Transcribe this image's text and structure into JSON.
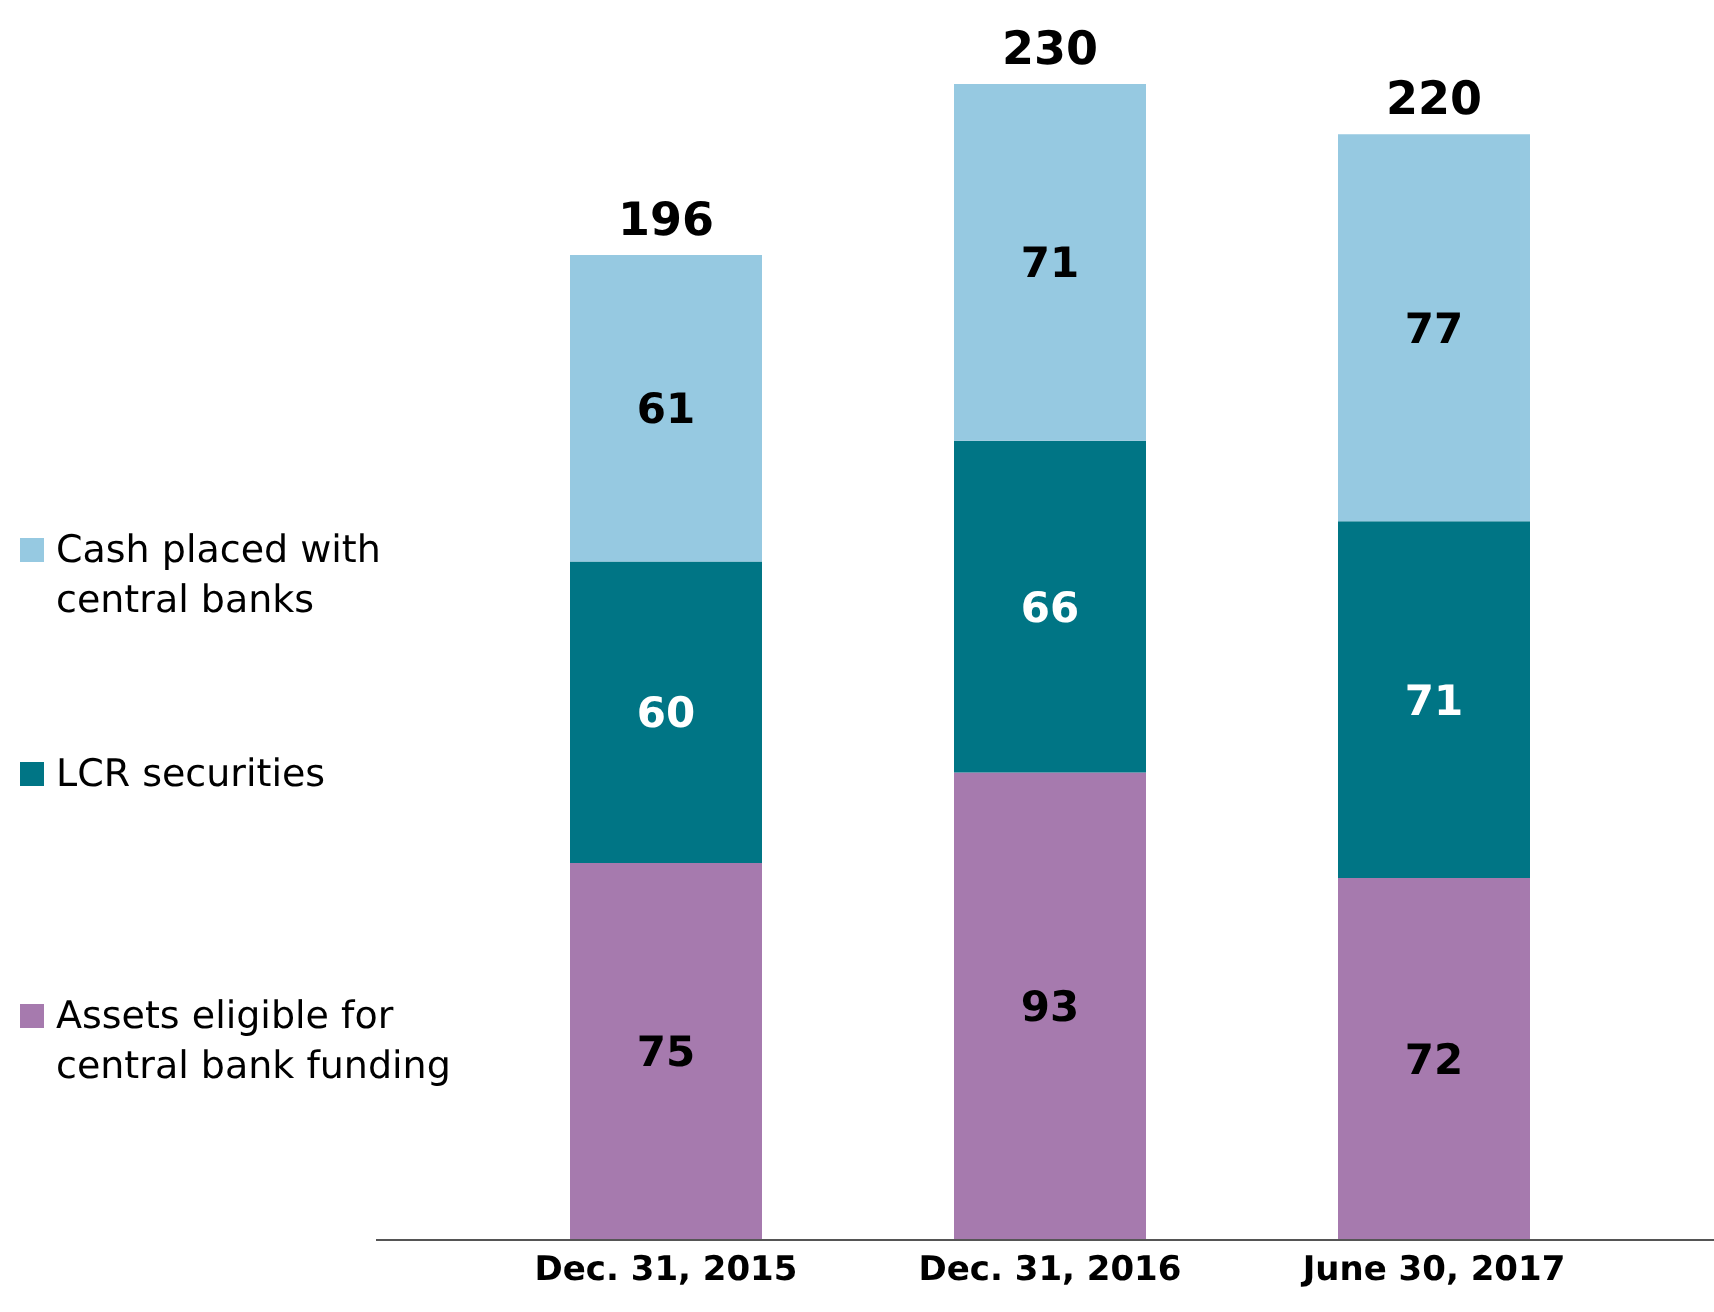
{
  "chart_data": {
    "type": "bar",
    "stacked": true,
    "categories": [
      "Dec. 31, 2015",
      "Dec. 31, 2016",
      "June 30, 2017"
    ],
    "series": [
      {
        "name": "Assets eligible for central bank funding",
        "color": "#a67aae",
        "values": [
          75,
          93,
          72
        ]
      },
      {
        "name": "LCR securities",
        "color": "#007585",
        "values": [
          60,
          66,
          71
        ]
      },
      {
        "name": "Cash placed with central banks",
        "color": "#96c9e1",
        "values": [
          61,
          71,
          77
        ]
      }
    ],
    "totals": [
      "196",
      "230",
      "220"
    ],
    "data_labels": true,
    "legend": "left",
    "grid": false
  }
}
